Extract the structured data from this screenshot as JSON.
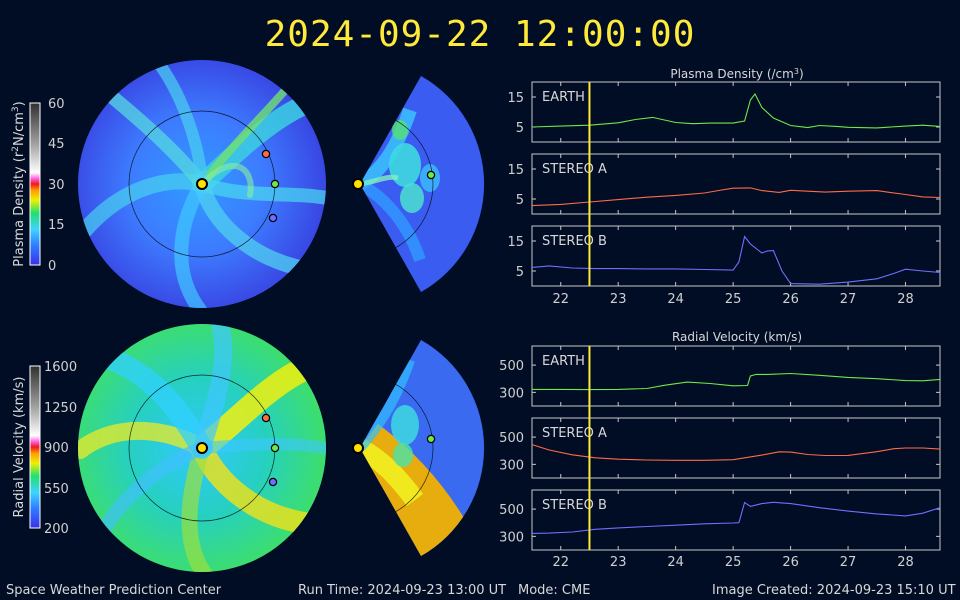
{
  "header": {
    "datetime": "2024-09-22 12:00:00"
  },
  "footer": {
    "center": "Space Weather Prediction Center",
    "run_time": "Run Time: 2024-09-23 13:00 UT",
    "mode": "Mode: CME",
    "image_created": "Image Created: 2024-09-23 15:10 UT"
  },
  "colorbars": {
    "density": {
      "label_main": "Plasma Density (r",
      "label_sup": "2",
      "label_end": "N/cm",
      "label_sup2": "3",
      "label_close": ")",
      "ticks": [
        "60",
        "45",
        "30",
        "15",
        "0"
      ],
      "min": 0,
      "max": 60
    },
    "velocity": {
      "label": "Radial Velocity (km/s)",
      "ticks": [
        "1600",
        "1250",
        "900",
        "550",
        "200"
      ],
      "min": 200,
      "max": 1600
    }
  },
  "colors": {
    "earth": "#6fe84a",
    "stereo_a": "#ff6a4a",
    "stereo_b": "#6f6fff",
    "time_marker": "#ffe93a",
    "background": "#000d24"
  },
  "chart_data": [
    {
      "type": "line",
      "title_main": "Plasma Density (/cm",
      "title_sup": "3",
      "title_close": ")",
      "x_ticks": [
        "22",
        "23",
        "24",
        "25",
        "26",
        "27",
        "28"
      ],
      "xlim": [
        21.5,
        28.6
      ],
      "current_time": 22.5,
      "panels": [
        {
          "name": "EARTH",
          "color": "#6fe84a",
          "ylim": [
            0,
            20
          ],
          "y_ticks": [
            5,
            15
          ],
          "x": [
            21.5,
            22.0,
            22.5,
            23.0,
            23.3,
            23.6,
            24.0,
            24.3,
            24.6,
            25.0,
            25.2,
            25.3,
            25.38,
            25.5,
            25.7,
            26.0,
            26.3,
            26.5,
            26.8,
            27.0,
            27.5,
            28.0,
            28.3,
            28.6
          ],
          "y": [
            5,
            5.3,
            5.6,
            6.4,
            7.5,
            8.2,
            6.5,
            6.1,
            6.3,
            6.3,
            7.0,
            14.0,
            16.0,
            11.5,
            8.0,
            5.5,
            4.8,
            5.5,
            5.2,
            4.9,
            4.7,
            5.3,
            5.6,
            5.2
          ]
        },
        {
          "name": "STEREO A",
          "color": "#ff6a4a",
          "ylim": [
            0,
            20
          ],
          "y_ticks": [
            5,
            15
          ],
          "x": [
            21.5,
            22.0,
            22.5,
            23.0,
            23.5,
            24.0,
            24.5,
            24.8,
            25.0,
            25.3,
            25.5,
            25.8,
            26.0,
            26.3,
            26.6,
            27.0,
            27.5,
            28.0,
            28.3,
            28.6
          ],
          "y": [
            2.8,
            3.2,
            4.0,
            4.8,
            5.6,
            6.2,
            7.0,
            8.0,
            8.6,
            8.7,
            7.8,
            7.2,
            7.9,
            7.6,
            7.3,
            7.6,
            7.8,
            6.5,
            5.7,
            5.5
          ]
        },
        {
          "name": "STEREO B",
          "color": "#6f6fff",
          "ylim": [
            0,
            20
          ],
          "y_ticks": [
            5,
            15
          ],
          "x": [
            21.5,
            21.8,
            22.2,
            22.6,
            23.0,
            23.5,
            24.0,
            24.5,
            25.0,
            25.1,
            25.2,
            25.3,
            25.5,
            25.6,
            25.7,
            25.85,
            26.0,
            26.5,
            27.0,
            27.5,
            27.8,
            28.0,
            28.3,
            28.6
          ],
          "y": [
            6.2,
            6.7,
            6.0,
            5.8,
            5.8,
            5.7,
            5.7,
            5.5,
            5.3,
            8.0,
            16.5,
            14.0,
            11.0,
            11.7,
            11.8,
            5.0,
            0.8,
            0.6,
            1.3,
            2.4,
            4.2,
            5.6,
            5.0,
            4.5
          ]
        }
      ]
    },
    {
      "type": "line",
      "title": "Radial Velocity (km/s)",
      "x_ticks": [
        "22",
        "23",
        "24",
        "25",
        "26",
        "27",
        "28"
      ],
      "xlim": [
        21.5,
        28.6
      ],
      "current_time": 22.5,
      "panels": [
        {
          "name": "EARTH",
          "color": "#6fe84a",
          "ylim": [
            200,
            640
          ],
          "y_ticks": [
            300,
            500
          ],
          "x": [
            21.5,
            22.0,
            22.5,
            23.0,
            23.5,
            23.8,
            24.2,
            24.6,
            25.0,
            25.25,
            25.3,
            25.4,
            25.6,
            26.0,
            26.5,
            27.0,
            27.5,
            28.0,
            28.3,
            28.6
          ],
          "y": [
            322,
            322,
            320,
            322,
            328,
            352,
            375,
            365,
            348,
            350,
            420,
            432,
            432,
            438,
            425,
            410,
            400,
            386,
            385,
            395
          ]
        },
        {
          "name": "STEREO A",
          "color": "#ff6a4a",
          "ylim": [
            200,
            640
          ],
          "y_ticks": [
            300,
            500
          ],
          "x": [
            21.5,
            21.8,
            22.2,
            22.6,
            23.0,
            23.5,
            24.0,
            24.5,
            25.0,
            25.5,
            25.8,
            26.0,
            26.3,
            26.6,
            27.0,
            27.5,
            27.8,
            28.0,
            28.3,
            28.6
          ],
          "y": [
            445,
            405,
            370,
            348,
            338,
            332,
            330,
            330,
            334,
            368,
            392,
            390,
            372,
            365,
            366,
            393,
            415,
            420,
            420,
            412
          ]
        },
        {
          "name": "STEREO B",
          "color": "#6f6fff",
          "ylim": [
            200,
            640
          ],
          "y_ticks": [
            300,
            500
          ],
          "x": [
            21.5,
            21.8,
            22.2,
            22.6,
            23.0,
            23.5,
            24.0,
            24.5,
            25.0,
            25.1,
            25.2,
            25.3,
            25.5,
            25.7,
            26.0,
            26.5,
            27.0,
            27.5,
            28.0,
            28.3,
            28.6
          ],
          "y": [
            322,
            324,
            332,
            352,
            362,
            372,
            382,
            392,
            398,
            400,
            548,
            520,
            540,
            550,
            540,
            510,
            485,
            465,
            450,
            470,
            510
          ]
        }
      ]
    }
  ]
}
